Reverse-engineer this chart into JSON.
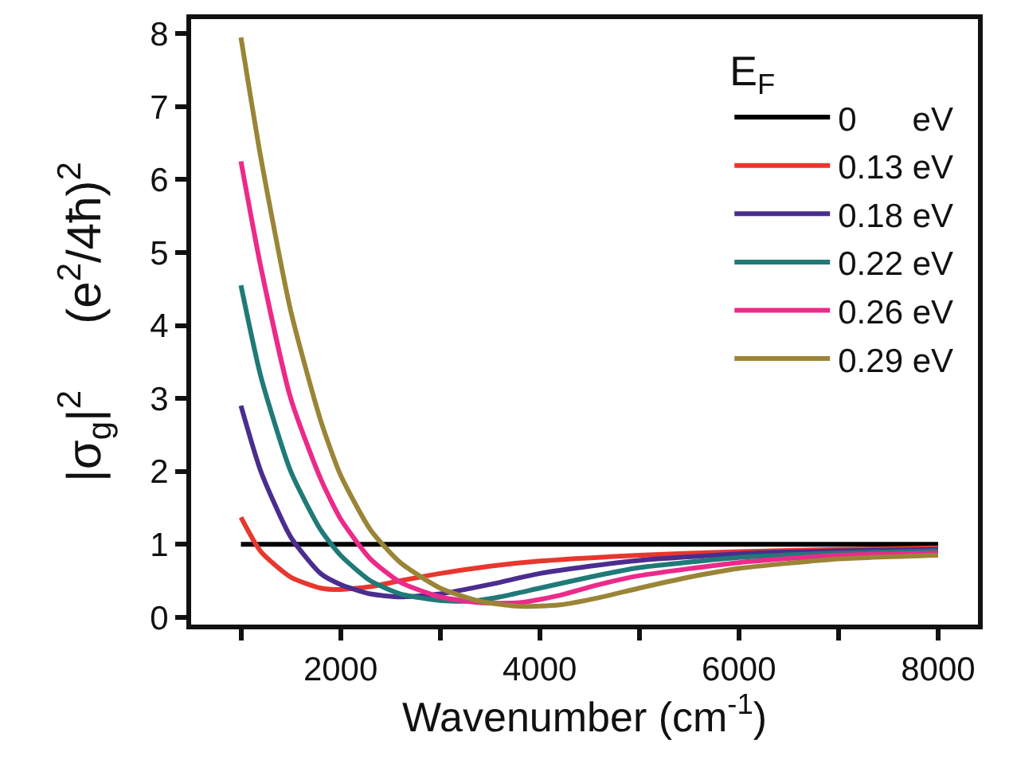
{
  "chart_data": {
    "type": "line",
    "xlabel": "Wavenumber (cm$^{-1}$)",
    "ylabel": "|σ$_{g}$|$^{2}$     (e$^{2}$/4ħ)$^{2}$",
    "legend_title": "E$_{F}$",
    "xlim": [
      500,
      8400
    ],
    "ylim": [
      -0.1,
      8.2
    ],
    "xticks": [
      {
        "value": 1000,
        "label": null
      },
      2000,
      {
        "value": 3000,
        "label": null
      },
      4000,
      {
        "value": 5000,
        "label": null
      },
      6000,
      {
        "value": 7000,
        "label": null
      },
      8000
    ],
    "yticks": [
      0,
      1,
      2,
      3,
      4,
      5,
      6,
      7,
      8
    ],
    "grid": false,
    "legend": "top right",
    "marker": "none",
    "line_style": "solid",
    "series": [
      {
        "name": "0      eV",
        "color": "#000000",
        "x": [
          1000,
          8000
        ],
        "values": [
          1,
          1
        ]
      },
      {
        "name": "0.13 eV",
        "color": "#e8372e",
        "x": [
          1000,
          1200,
          1500,
          1800,
          2000,
          2300,
          2600,
          3000,
          3500,
          4000,
          5000,
          6000,
          7000,
          8000
        ],
        "values": [
          1.37,
          0.9,
          0.55,
          0.4,
          0.38,
          0.42,
          0.5,
          0.6,
          0.7,
          0.77,
          0.85,
          0.9,
          0.93,
          0.95
        ]
      },
      {
        "name": "0.18 eV",
        "color": "#4b2d8f",
        "x": [
          1000,
          1200,
          1500,
          1800,
          2000,
          2300,
          2600,
          3000,
          3500,
          4000,
          4500,
          5000,
          6000,
          7000,
          8000
        ],
        "values": [
          2.9,
          2.0,
          1.1,
          0.6,
          0.45,
          0.32,
          0.28,
          0.32,
          0.45,
          0.6,
          0.7,
          0.78,
          0.87,
          0.91,
          0.93
        ]
      },
      {
        "name": "0.22 eV",
        "color": "#1f7a78",
        "x": [
          1000,
          1200,
          1500,
          1800,
          2000,
          2300,
          2600,
          3000,
          3300,
          3600,
          4000,
          4500,
          5000,
          6000,
          7000,
          8000
        ],
        "values": [
          4.55,
          3.3,
          2.0,
          1.2,
          0.85,
          0.5,
          0.32,
          0.23,
          0.22,
          0.28,
          0.4,
          0.55,
          0.68,
          0.82,
          0.88,
          0.91
        ]
      },
      {
        "name": "0.26 eV",
        "color": "#ec2a8a",
        "x": [
          1000,
          1200,
          1500,
          1800,
          2000,
          2300,
          2600,
          3000,
          3400,
          3800,
          4200,
          4600,
          5000,
          6000,
          7000,
          8000
        ],
        "values": [
          6.25,
          4.8,
          3.0,
          1.9,
          1.35,
          0.8,
          0.48,
          0.28,
          0.2,
          0.2,
          0.3,
          0.45,
          0.57,
          0.75,
          0.85,
          0.88
        ]
      },
      {
        "name": "0.29 eV",
        "color": "#9a8537",
        "x": [
          1000,
          1200,
          1500,
          1800,
          2000,
          2300,
          2600,
          3000,
          3400,
          3800,
          4200,
          4600,
          5000,
          5500,
          6000,
          7000,
          8000
        ],
        "values": [
          7.95,
          6.3,
          4.2,
          2.7,
          1.95,
          1.2,
          0.75,
          0.4,
          0.22,
          0.15,
          0.17,
          0.27,
          0.4,
          0.55,
          0.67,
          0.8,
          0.85
        ]
      }
    ]
  }
}
